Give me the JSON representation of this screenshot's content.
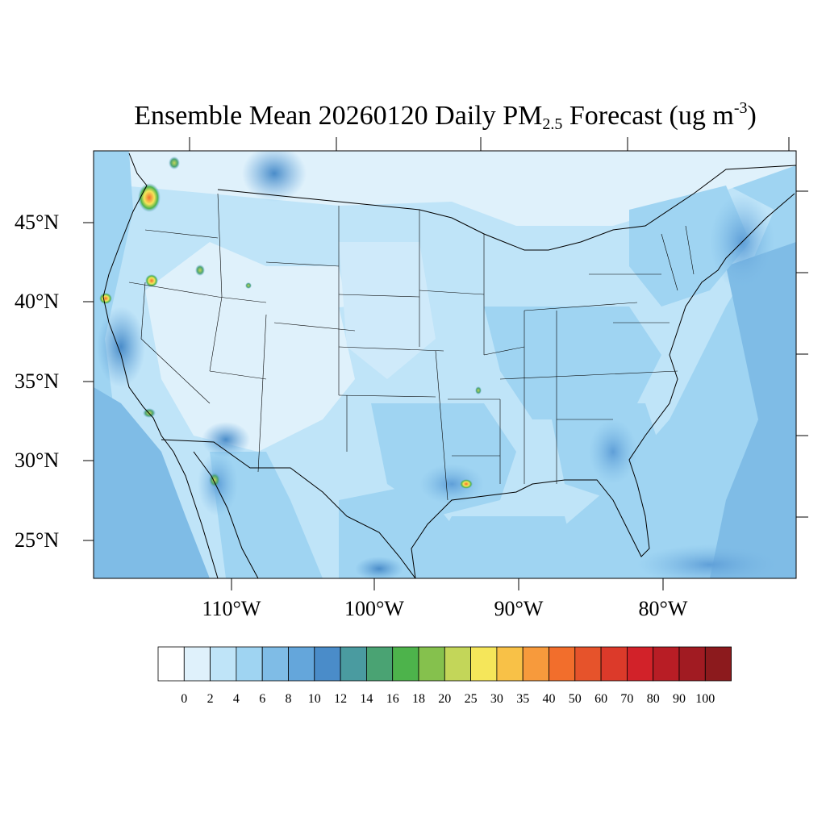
{
  "title": {
    "main": "Ensemble Mean 20260120 Daily PM",
    "sub": "2.5",
    "rest": " Forecast (ug m",
    "sup": "-3",
    "close": ")"
  },
  "map": {
    "region": "Contiguous United States",
    "lat_labels": [
      "45°N",
      "40°N",
      "35°N",
      "30°N",
      "25°N"
    ],
    "lon_labels": [
      "110°W",
      "100°W",
      "90°W",
      "80°W"
    ]
  },
  "colorbar": {
    "levels": [
      "0",
      "2",
      "4",
      "6",
      "8",
      "10",
      "12",
      "14",
      "16",
      "18",
      "20",
      "25",
      "30",
      "35",
      "40",
      "50",
      "60",
      "70",
      "80",
      "90",
      "100"
    ],
    "colors": [
      "#ffffff",
      "#dff1fb",
      "#bfe4f8",
      "#9fd4f2",
      "#7fbce6",
      "#64a6db",
      "#4a8cc9",
      "#4a9ba0",
      "#4aa373",
      "#4db34b",
      "#85c14d",
      "#c3d659",
      "#f5e65a",
      "#f8c147",
      "#f79a3c",
      "#f26e2c",
      "#e6532b",
      "#dc3a2a",
      "#d22229",
      "#b81d25",
      "#a11b22",
      "#8c1a1d"
    ]
  }
}
